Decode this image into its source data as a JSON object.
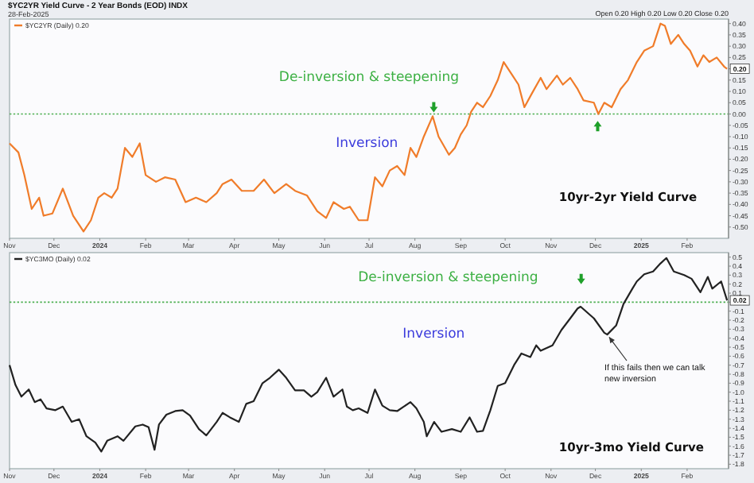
{
  "chart_data": [
    {
      "type": "line",
      "title": "$YC2YR Yield Curve - 2 Year Bonds (EOD) INDX",
      "subtitle": "28-Feb-2025",
      "x": [
        "2023-11-01",
        "2023-11-07",
        "2023-11-11",
        "2023-11-16",
        "2023-11-21",
        "2023-11-24",
        "2023-11-30",
        "2023-12-07",
        "2023-12-14",
        "2023-12-18",
        "2023-12-21",
        "2023-12-26",
        "2023-12-31",
        "2024-01-04",
        "2024-01-09",
        "2024-01-13",
        "2024-01-18",
        "2024-01-23",
        "2024-01-28",
        "2024-02-01",
        "2024-02-08",
        "2024-02-14",
        "2024-02-21",
        "2024-02-28",
        "2024-03-06",
        "2024-03-13",
        "2024-03-20",
        "2024-03-24",
        "2024-03-30",
        "2024-04-06",
        "2024-04-14",
        "2024-04-21",
        "2024-04-28",
        "2024-05-06",
        "2024-05-12",
        "2024-05-20",
        "2024-05-27",
        "2024-06-02",
        "2024-06-07",
        "2024-06-14",
        "2024-06-18",
        "2024-06-24",
        "2024-06-30",
        "2024-07-05",
        "2024-07-10",
        "2024-07-15",
        "2024-07-20",
        "2024-07-25",
        "2024-07-29",
        "2024-08-02",
        "2024-08-07",
        "2024-08-13",
        "2024-08-17",
        "2024-08-24",
        "2024-08-28",
        "2024-09-01",
        "2024-09-05",
        "2024-09-08",
        "2024-09-12",
        "2024-09-16",
        "2024-09-21",
        "2024-09-26",
        "2024-09-30",
        "2024-10-06",
        "2024-10-10",
        "2024-10-14",
        "2024-10-19",
        "2024-10-25",
        "2024-10-29",
        "2024-11-05",
        "2024-11-09",
        "2024-11-14",
        "2024-11-19",
        "2024-11-23",
        "2024-11-30",
        "2024-12-03",
        "2024-12-07",
        "2024-12-12",
        "2024-12-18",
        "2024-12-23",
        "2024-12-29",
        "2025-01-03",
        "2025-01-09",
        "2025-01-14",
        "2025-01-17",
        "2025-01-21",
        "2025-01-26",
        "2025-01-30",
        "2025-02-03",
        "2025-02-08",
        "2025-02-12",
        "2025-02-16",
        "2025-02-21",
        "2025-02-26",
        "2025-02-28"
      ],
      "series": [
        {
          "name": "$YC2YR (Daily) 0.20",
          "color": "#f07c2a",
          "values": [
            -0.13,
            -0.17,
            -0.27,
            -0.42,
            -0.37,
            -0.45,
            -0.44,
            -0.33,
            -0.45,
            -0.49,
            -0.52,
            -0.47,
            -0.37,
            -0.35,
            -0.37,
            -0.33,
            -0.15,
            -0.19,
            -0.13,
            -0.27,
            -0.3,
            -0.28,
            -0.29,
            -0.39,
            -0.37,
            -0.39,
            -0.35,
            -0.31,
            -0.29,
            -0.34,
            -0.34,
            -0.29,
            -0.35,
            -0.31,
            -0.34,
            -0.36,
            -0.43,
            -0.46,
            -0.39,
            -0.42,
            -0.41,
            -0.47,
            -0.47,
            -0.28,
            -0.32,
            -0.25,
            -0.23,
            -0.27,
            -0.15,
            -0.19,
            -0.1,
            -0.01,
            -0.1,
            -0.18,
            -0.15,
            -0.09,
            -0.05,
            0.01,
            0.05,
            0.03,
            0.08,
            0.15,
            0.23,
            0.17,
            0.13,
            0.03,
            0.09,
            0.16,
            0.11,
            0.17,
            0.13,
            0.16,
            0.11,
            0.06,
            0.05,
            0.0,
            0.05,
            0.03,
            0.11,
            0.15,
            0.23,
            0.28,
            0.3,
            0.4,
            0.39,
            0.31,
            0.35,
            0.31,
            0.28,
            0.21,
            0.26,
            0.23,
            0.25,
            0.21,
            0.2
          ]
        }
      ],
      "xlim": [
        "2023-11-01",
        "2025-03-01"
      ],
      "xticks": [
        {
          "value": "2023-11-01",
          "label": "Nov"
        },
        {
          "value": "2023-12-01",
          "label": "Dec"
        },
        {
          "value": "2024-01-01",
          "label": "2024"
        },
        {
          "value": "2024-02-01",
          "label": "Feb"
        },
        {
          "value": "2024-03-01",
          "label": "Mar"
        },
        {
          "value": "2024-04-01",
          "label": "Apr"
        },
        {
          "value": "2024-05-01",
          "label": "May"
        },
        {
          "value": "2024-06-01",
          "label": "Jun"
        },
        {
          "value": "2024-07-01",
          "label": "Jul"
        },
        {
          "value": "2024-08-01",
          "label": "Aug"
        },
        {
          "value": "2024-09-01",
          "label": "Sep"
        },
        {
          "value": "2024-10-01",
          "label": "Oct"
        },
        {
          "value": "2024-11-01",
          "label": "Nov"
        },
        {
          "value": "2024-12-01",
          "label": "Dec"
        },
        {
          "value": "2025-01-01",
          "label": "2025"
        },
        {
          "value": "2025-02-01",
          "label": "Feb"
        }
      ],
      "ylim": [
        -0.55,
        0.42
      ],
      "yticks": [
        {
          "value": 0.4,
          "label": "0.40"
        },
        0.35,
        {
          "value": 0.3,
          "label": "0.30"
        },
        0.25,
        {
          "value": 0.2,
          "label": null
        },
        0.15,
        {
          "value": 0.1,
          "label": "0.10"
        },
        0.05,
        {
          "value": 0,
          "label": "0.00"
        },
        -0.05,
        {
          "value": -0.1,
          "label": "-0.10"
        },
        -0.15,
        {
          "value": -0.2,
          "label": "-0.20"
        },
        -0.25,
        {
          "value": -0.3,
          "label": "-0.30"
        },
        -0.35,
        {
          "value": -0.4,
          "label": "-0.40"
        },
        -0.45,
        {
          "value": -0.5,
          "label": "-0.50"
        }
      ],
      "ref_lines": [
        {
          "axis": "y",
          "value": 0,
          "color": "#4caf50",
          "line_style": "dotted"
        }
      ],
      "legend": "top left",
      "annotations": [
        "De-inversion & steepening",
        "Inversion",
        "10yr-2yr Yield Curve",
        {
          "text": "0.20",
          "x": "2025-02-28",
          "y": 0.2
        },
        "Open 0.20  High 0.20  Low 0.20  Close 0.20"
      ]
    },
    {
      "type": "line",
      "x": [
        "2023-11-01",
        "2023-11-05",
        "2023-11-09",
        "2023-11-14",
        "2023-11-18",
        "2023-11-22",
        "2023-11-26",
        "2023-12-02",
        "2023-12-07",
        "2023-12-13",
        "2023-12-18",
        "2023-12-23",
        "2023-12-29",
        "2024-01-02",
        "2024-01-06",
        "2024-01-13",
        "2024-01-17",
        "2024-01-25",
        "2024-01-30",
        "2024-02-03",
        "2024-02-07",
        "2024-02-10",
        "2024-02-15",
        "2024-02-21",
        "2024-02-26",
        "2024-03-02",
        "2024-03-08",
        "2024-03-13",
        "2024-03-20",
        "2024-03-24",
        "2024-03-29",
        "2024-04-04",
        "2024-04-09",
        "2024-04-14",
        "2024-04-20",
        "2024-04-25",
        "2024-05-01",
        "2024-05-06",
        "2024-05-12",
        "2024-05-18",
        "2024-05-23",
        "2024-05-27",
        "2024-06-02",
        "2024-06-07",
        "2024-06-13",
        "2024-06-16",
        "2024-06-20",
        "2024-06-24",
        "2024-06-30",
        "2024-07-05",
        "2024-07-10",
        "2024-07-15",
        "2024-07-20",
        "2024-07-29",
        "2024-08-02",
        "2024-08-07",
        "2024-08-09",
        "2024-08-14",
        "2024-08-19",
        "2024-08-26",
        "2024-09-01",
        "2024-09-07",
        "2024-09-12",
        "2024-09-16",
        "2024-09-21",
        "2024-09-26",
        "2024-10-01",
        "2024-10-07",
        "2024-10-12",
        "2024-10-18",
        "2024-10-22",
        "2024-10-25",
        "2024-11-02",
        "2024-11-08",
        "2024-11-14",
        "2024-11-19",
        "2024-11-21",
        "2024-11-30",
        "2024-12-07",
        "2024-12-09",
        "2024-12-15",
        "2024-12-20",
        "2024-12-26",
        "2024-12-29",
        "2025-01-03",
        "2025-01-09",
        "2025-01-14",
        "2025-01-18",
        "2025-01-23",
        "2025-01-30",
        "2025-02-04",
        "2025-02-10",
        "2025-02-15",
        "2025-02-18",
        "2025-02-24",
        "2025-02-28"
      ],
      "series": [
        {
          "name": "$YC3MO (Daily) 0.02",
          "color": "#222222",
          "values": [
            -0.7,
            -0.92,
            -1.05,
            -0.97,
            -1.11,
            -1.08,
            -1.18,
            -1.2,
            -1.16,
            -1.33,
            -1.3,
            -1.49,
            -1.56,
            -1.66,
            -1.54,
            -1.49,
            -1.54,
            -1.38,
            -1.36,
            -1.39,
            -1.64,
            -1.36,
            -1.25,
            -1.21,
            -1.2,
            -1.26,
            -1.41,
            -1.48,
            -1.33,
            -1.23,
            -1.28,
            -1.33,
            -1.13,
            -1.1,
            -0.9,
            -0.84,
            -0.75,
            -0.84,
            -0.98,
            -0.98,
            -1.05,
            -1.0,
            -0.84,
            -1.05,
            -0.97,
            -1.16,
            -1.2,
            -1.18,
            -1.23,
            -0.97,
            -1.15,
            -1.2,
            -1.21,
            -1.11,
            -1.18,
            -1.33,
            -1.49,
            -1.33,
            -1.44,
            -1.41,
            -1.44,
            -1.28,
            -1.44,
            -1.43,
            -1.2,
            -0.93,
            -0.9,
            -0.7,
            -0.57,
            -0.61,
            -0.48,
            -0.54,
            -0.48,
            -0.31,
            -0.18,
            -0.07,
            -0.05,
            -0.18,
            -0.34,
            -0.36,
            -0.26,
            -0.02,
            0.15,
            0.23,
            0.31,
            0.34,
            0.43,
            0.49,
            0.34,
            0.3,
            0.26,
            0.11,
            0.28,
            0.15,
            0.23,
            0.02
          ]
        }
      ],
      "xlim": [
        "2023-11-01",
        "2025-03-01"
      ],
      "xticks": [
        {
          "value": "2023-11-01",
          "label": "Nov"
        },
        {
          "value": "2023-12-01",
          "label": "Dec"
        },
        {
          "value": "2024-01-01",
          "label": "2024"
        },
        {
          "value": "2024-02-01",
          "label": "Feb"
        },
        {
          "value": "2024-03-01",
          "label": "Mar"
        },
        {
          "value": "2024-04-01",
          "label": "Apr"
        },
        {
          "value": "2024-05-01",
          "label": "May"
        },
        {
          "value": "2024-06-01",
          "label": "Jun"
        },
        {
          "value": "2024-07-01",
          "label": "Jul"
        },
        {
          "value": "2024-08-01",
          "label": "Aug"
        },
        {
          "value": "2024-09-01",
          "label": "Sep"
        },
        {
          "value": "2024-10-01",
          "label": "Oct"
        },
        {
          "value": "2024-11-01",
          "label": "Nov"
        },
        {
          "value": "2024-12-01",
          "label": "Dec"
        },
        {
          "value": "2025-01-01",
          "label": "2025"
        },
        {
          "value": "2025-02-01",
          "label": "Feb"
        }
      ],
      "ylim": [
        -1.85,
        0.55
      ],
      "yticks": [
        0.5,
        0.4,
        0.3,
        0.2,
        0.1,
        {
          "value": 0,
          "label": null
        },
        -0.1,
        -0.2,
        -0.3,
        -0.4,
        -0.5,
        -0.6,
        -0.7,
        -0.8,
        -0.9,
        {
          "value": -1,
          "label": "-1.0"
        },
        -1.1,
        -1.2,
        -1.3,
        -1.4,
        -1.5,
        -1.6,
        -1.7,
        -1.8
      ],
      "ref_lines": [
        {
          "axis": "y",
          "value": 0,
          "color": "#4caf50",
          "line_style": "dotted"
        }
      ],
      "legend": "top left",
      "annotations": [
        "De-inversion & steepening",
        "Inversion",
        "10yr-3mo Yield Curve",
        {
          "text": "0.02",
          "x": "2025-02-28",
          "y": 0.02
        },
        {
          "text": "If this fails then we can talk new inversion",
          "x": "2024-12-09",
          "y": -0.36
        }
      ]
    }
  ]
}
